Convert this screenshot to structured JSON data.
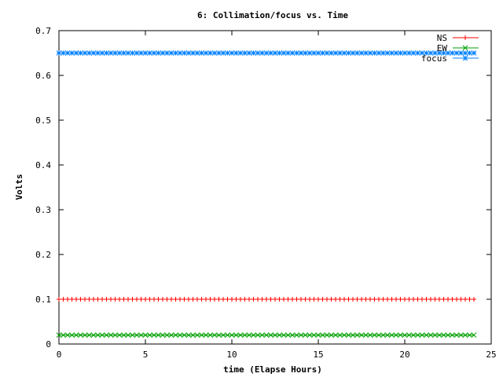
{
  "chart_data": {
    "type": "line",
    "title": "6: Collimation/focus vs. Time",
    "xlabel": "time (Elapse Hours)",
    "ylabel": "Volts",
    "xlim": [
      0,
      25
    ],
    "ylim": [
      0,
      0.7
    ],
    "xticks": [
      "0",
      "5",
      "10",
      "15",
      "20",
      "25"
    ],
    "yticks": [
      "0",
      "0.1",
      "0.2",
      "0.3",
      "0.4",
      "0.5",
      "0.6",
      "0.7"
    ],
    "grid": false,
    "legend_position": "top-right",
    "x": {
      "start": 0,
      "end": 24,
      "step": 0.25
    },
    "series": [
      {
        "name": "NS",
        "color": "#ff0000",
        "marker": "plus",
        "value": 0.1
      },
      {
        "name": "EW",
        "color": "#00a000",
        "marker": "cross",
        "value": 0.02
      },
      {
        "name": "focus",
        "color": "#0080ff",
        "marker": "star",
        "value": 0.65
      }
    ]
  }
}
